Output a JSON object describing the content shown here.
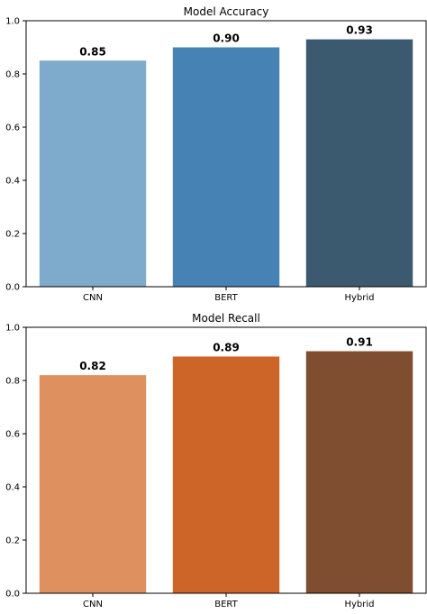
{
  "chart_data": [
    {
      "type": "bar",
      "title": "Model Accuracy",
      "xlabel": "",
      "ylabel": "",
      "categories": [
        "CNN",
        "BERT",
        "Hybrid"
      ],
      "values": [
        0.85,
        0.9,
        0.93
      ],
      "value_labels": [
        "0.85",
        "0.90",
        "0.93"
      ],
      "colors": [
        "#7eaacb",
        "#4682b4",
        "#3b5a70"
      ],
      "ylim": [
        0,
        1.0
      ],
      "yticks": [
        "0.0",
        "0.2",
        "0.4",
        "0.6",
        "0.8",
        "1.0"
      ],
      "grid": false,
      "legend": "none"
    },
    {
      "type": "bar",
      "title": "Model Recall",
      "xlabel": "",
      "ylabel": "",
      "categories": [
        "CNN",
        "BERT",
        "Hybrid"
      ],
      "values": [
        0.82,
        0.89,
        0.91
      ],
      "value_labels": [
        "0.82",
        "0.89",
        "0.91"
      ],
      "colors": [
        "#de915e",
        "#cd6428",
        "#7f4d2f"
      ],
      "ylim": [
        0,
        1.0
      ],
      "yticks": [
        "0.0",
        "0.2",
        "0.4",
        "0.6",
        "0.8",
        "1.0"
      ],
      "grid": false,
      "legend": "none"
    }
  ]
}
